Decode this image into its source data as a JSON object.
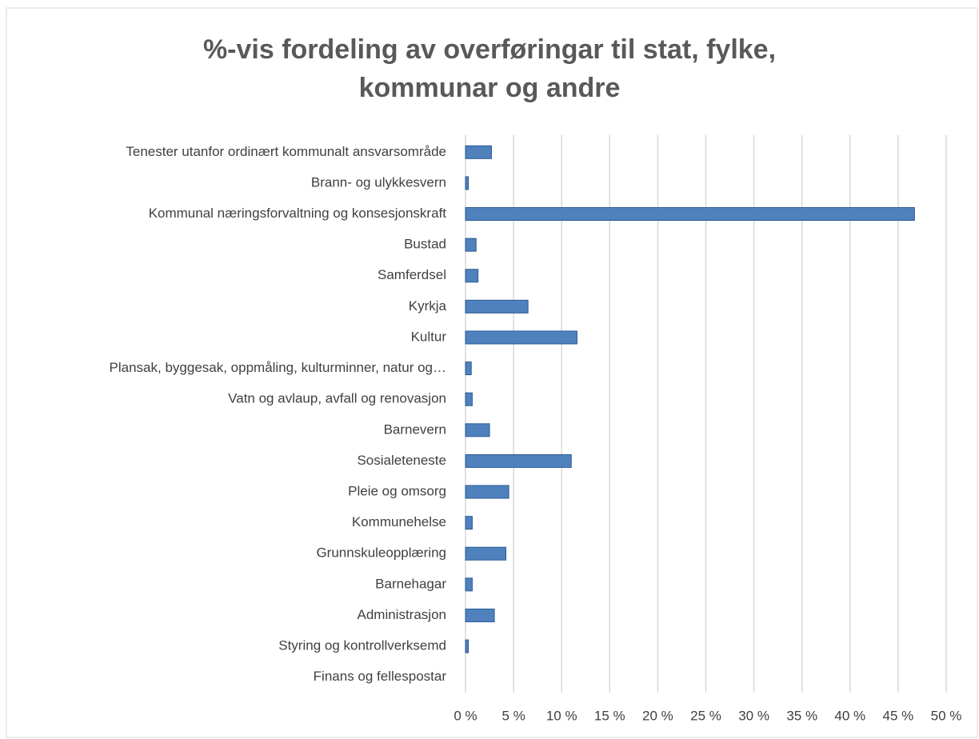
{
  "chart_data": {
    "type": "bar",
    "orientation": "horizontal",
    "title": "%-vis fordeling av overføringar til stat, fylke, kommunar og andre",
    "categories": [
      "Tenester utanfor ordinært kommunalt ansvarsområde",
      "Brann- og ulykkesvern",
      "Kommunal næringsforvaltning og konsesjonskraft",
      "Bustad",
      "Samferdsel",
      "Kyrkja",
      "Kultur",
      "Plansak, byggesak, oppmåling, kulturminner, natur og…",
      "Vatn og avlaup, avfall og renovasjon",
      "Barnevern",
      "Sosialeteneste",
      "Pleie og omsorg",
      "Kommunehelse",
      "Grunnskuleopplæring",
      "Barnehagar",
      "Administrasjon",
      "Styring og kontrollverksemd",
      "Finans og fellespostar"
    ],
    "values": [
      2.7,
      0.3,
      46.7,
      1.1,
      1.3,
      6.5,
      11.6,
      0.6,
      0.7,
      2.5,
      11.0,
      4.5,
      0.7,
      4.2,
      0.7,
      3.0,
      0.3,
      0
    ],
    "color": "#4f81bd",
    "xlim": [
      0,
      50
    ],
    "xticks": [
      {
        "value": 0,
        "label": "0 %"
      },
      {
        "value": 5,
        "label": "5 %"
      },
      {
        "value": 10,
        "label": "10 %"
      },
      {
        "value": 15,
        "label": "15 %"
      },
      {
        "value": 20,
        "label": "20 %"
      },
      {
        "value": 25,
        "label": "25 %"
      },
      {
        "value": 30,
        "label": "30 %"
      },
      {
        "value": 35,
        "label": "35 %"
      },
      {
        "value": 40,
        "label": "40 %"
      },
      {
        "value": 45,
        "label": "45 %"
      },
      {
        "value": 50,
        "label": "50 %"
      }
    ],
    "grid": true
  }
}
